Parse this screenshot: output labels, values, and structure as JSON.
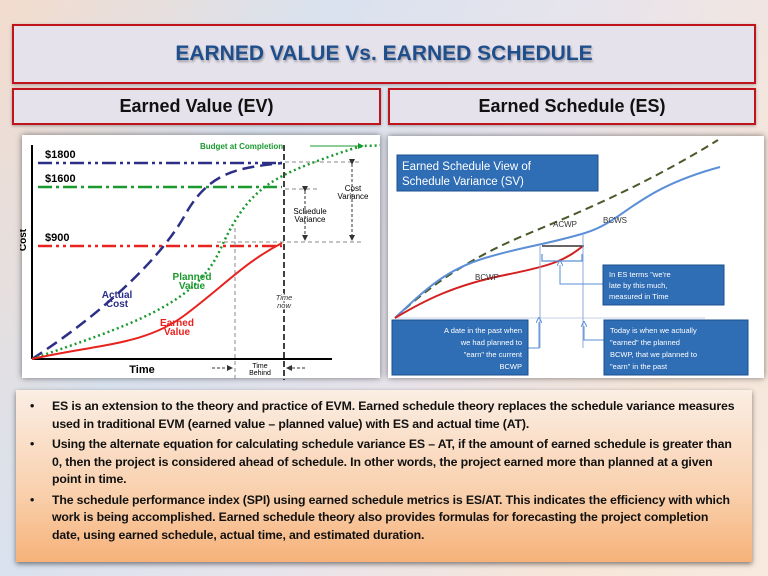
{
  "title": "EARNED VALUE Vs. EARNED SCHEDULE",
  "headers": {
    "ev": "Earned Value (EV)",
    "es": "Earned Schedule (ES)"
  },
  "ev_chart": {
    "y_axis_label": "Cost",
    "x_axis_label": "Time",
    "levels": [
      "$1800",
      "$1600",
      "$900"
    ],
    "budget_at_completion": "Budget at Completion",
    "cost_variance": [
      "Cost",
      "Variance"
    ],
    "schedule_variance": [
      "Schedule",
      "Variance"
    ],
    "planned_value": [
      "Planned",
      "Value"
    ],
    "actual_cost": [
      "Actual",
      "Cost"
    ],
    "earned_value": [
      "Earned",
      "Value"
    ],
    "time_now": [
      "Time",
      "now"
    ],
    "time_behind": [
      "Time",
      "Behind"
    ],
    "colors": {
      "actual_cost": "#2b2f86",
      "planned_value": "#1a9a2e",
      "earned_value": "#e8231f"
    }
  },
  "es_chart": {
    "title": [
      "Earned Schedule View of",
      "Schedule Variance (SV)"
    ],
    "series_labels": {
      "acwp": "ACWP",
      "bcws": "BCWS",
      "bcwp": "BCWP"
    },
    "callout_late": [
      "In ES terms \"we're",
      "late by this much,",
      "measured in Time"
    ],
    "callout_past": [
      "A date in the past when",
      "we had planned to",
      "\"earn\" the current",
      "BCWP"
    ],
    "callout_today": [
      "Today is when we actually",
      "\"earned\" the planned",
      "BCWP, that we planned to",
      "\"earn\" in the past"
    ],
    "colors": {
      "acwp": "#4a5a2a",
      "bcws": "#5b8fd6",
      "bcwp": "#d42020",
      "callout": "#2f6db5"
    }
  },
  "bullets": [
    "ES is an extension to the theory and practice of EVM. Earned schedule theory replaces the schedule variance measures used in traditional EVM (earned value – planned value) with ES and actual time (AT).",
    "Using the alternate equation for calculating schedule variance ES – AT, if the amount of earned schedule is greater than 0, then the project is considered ahead of schedule. In other words, the project earned more than planned at a given point in time.",
    "The schedule performance index (SPI) using earned schedule metrics is ES/AT. This indicates the efficiency with which work is being accomplished. Earned schedule theory also provides formulas for forecasting the project completion date, using earned schedule, actual time, and estimated duration."
  ]
}
